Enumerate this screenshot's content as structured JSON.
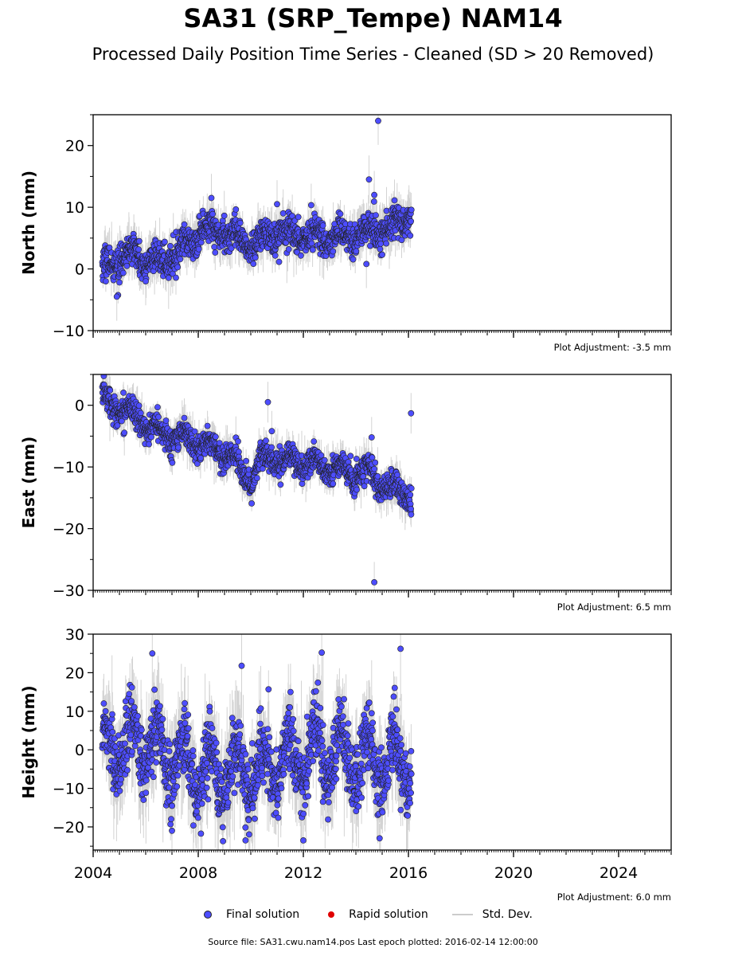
{
  "title": "SA31 (SRP_Tempe) NAM14",
  "subtitle": "Processed Daily Position Time Series - Cleaned (SD > 20 Removed)",
  "legend": {
    "final": "Final solution",
    "rapid": "Rapid solution",
    "std": "Std. Dev."
  },
  "footer": "Source file: SA31.cwu.nam14.pos  Last epoch plotted: 2016-02-14 12:00:00",
  "colors": {
    "final": "#4d4dff",
    "final_edge": "#222222",
    "rapid": "#e00000",
    "std": "#cccccc",
    "std_dense": "#808080"
  },
  "chart_data": [
    {
      "type": "scatter",
      "ylabel": "North (mm)",
      "adjustment": "Plot Adjustment: -3.5 mm",
      "xlim": [
        2004.0,
        2026.0
      ],
      "ylim": [
        -10,
        25
      ],
      "yticks": [
        -10,
        0,
        10,
        20
      ],
      "xticks": [
        2004,
        2008,
        2012,
        2016,
        2020,
        2024
      ],
      "xtick_labels": [],
      "data_span": [
        2004.35,
        2016.12
      ],
      "trend": [
        [
          2004.35,
          0.0
        ],
        [
          2005.5,
          2.5
        ],
        [
          2006.5,
          1.0
        ],
        [
          2007.5,
          3.5
        ],
        [
          2008.2,
          6.5
        ],
        [
          2009.3,
          5.5
        ],
        [
          2010.0,
          4.0
        ],
        [
          2011.0,
          6.0
        ],
        [
          2012.0,
          5.5
        ],
        [
          2013.0,
          5.0
        ],
        [
          2014.0,
          5.5
        ],
        [
          2015.0,
          6.5
        ],
        [
          2015.8,
          7.5
        ],
        [
          2016.12,
          10.0
        ]
      ],
      "seasonal_amplitude": 1.0,
      "scatter_sd": 1.3,
      "outliers": [
        [
          2004.9,
          -4.5
        ],
        [
          2006.0,
          -2.0
        ],
        [
          2008.5,
          11.5
        ],
        [
          2011.0,
          10.5
        ],
        [
          2014.5,
          14.5
        ],
        [
          2014.7,
          12.0
        ],
        [
          2014.85,
          24.0
        ],
        [
          2014.4,
          0.8
        ]
      ]
    },
    {
      "type": "scatter",
      "ylabel": "East (mm)",
      "adjustment": "Plot Adjustment: 6.5 mm",
      "xlim": [
        2004.0,
        2026.0
      ],
      "ylim": [
        -30,
        5
      ],
      "yticks": [
        -30,
        -20,
        -10,
        0
      ],
      "xticks": [
        2004,
        2008,
        2012,
        2016,
        2020,
        2024
      ],
      "xtick_labels": [],
      "data_span": [
        2004.35,
        2016.12
      ],
      "trend": [
        [
          2004.35,
          1.0
        ],
        [
          2005.5,
          -1.5
        ],
        [
          2006.5,
          -4.5
        ],
        [
          2007.7,
          -5.5
        ],
        [
          2008.3,
          -7.0
        ],
        [
          2009.2,
          -8.0
        ],
        [
          2010.0,
          -12.5
        ],
        [
          2010.5,
          -8.5
        ],
        [
          2011.5,
          -9.0
        ],
        [
          2012.5,
          -9.5
        ],
        [
          2013.5,
          -10.5
        ],
        [
          2014.5,
          -11.0
        ],
        [
          2015.0,
          -13.0
        ],
        [
          2016.12,
          -15.0
        ]
      ],
      "seasonal_amplitude": 1.1,
      "scatter_sd": 1.1,
      "outliers": [
        [
          2010.65,
          0.5
        ],
        [
          2010.8,
          -4.2
        ],
        [
          2014.6,
          -5.2
        ],
        [
          2014.7,
          -28.7
        ],
        [
          2016.1,
          -1.3
        ]
      ]
    },
    {
      "type": "scatter",
      "ylabel": "Height (mm)",
      "adjustment": "Plot Adjustment: 6.0 mm",
      "xlim": [
        2004.0,
        2026.0
      ],
      "ylim": [
        -26,
        30
      ],
      "yticks": [
        -20,
        -10,
        0,
        10,
        20,
        30
      ],
      "xticks": [
        2004,
        2008,
        2012,
        2016,
        2020,
        2024
      ],
      "xtick_labels": [
        "2004",
        "2008",
        "2012",
        "2016",
        "2020",
        "2024"
      ],
      "data_span": [
        2004.35,
        2016.12
      ],
      "trend": [
        [
          2004.35,
          0.0
        ],
        [
          2006.0,
          2.0
        ],
        [
          2008.0,
          -6.0
        ],
        [
          2009.5,
          -7.0
        ],
        [
          2011.0,
          -3.0
        ],
        [
          2012.5,
          -1.0
        ],
        [
          2014.0,
          -2.5
        ],
        [
          2016.12,
          -3.0
        ]
      ],
      "seasonal_amplitude": 7.0,
      "scatter_sd": 4.5,
      "outliers": [
        [
          2006.25,
          25.0
        ],
        [
          2009.65,
          21.8
        ],
        [
          2012.7,
          25.2
        ],
        [
          2015.7,
          26.2
        ],
        [
          2012.0,
          -23.5
        ],
        [
          2009.8,
          -23.5
        ],
        [
          2007.0,
          -21.0
        ]
      ]
    }
  ]
}
